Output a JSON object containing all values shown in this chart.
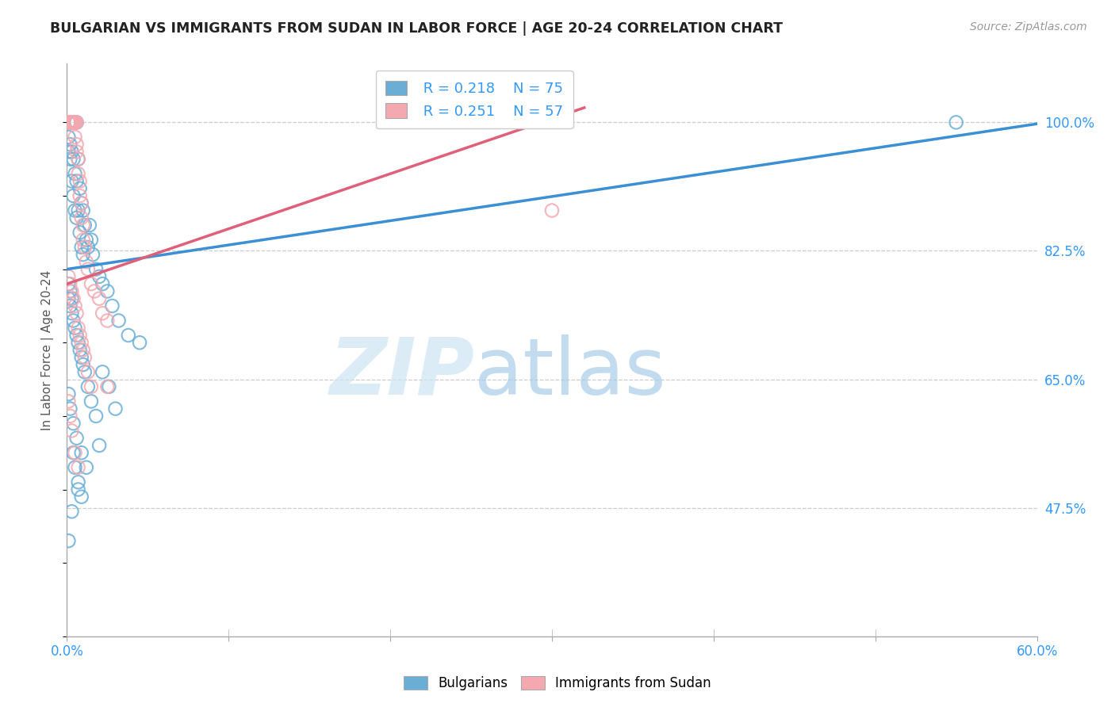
{
  "title": "BULGARIAN VS IMMIGRANTS FROM SUDAN IN LABOR FORCE | AGE 20-24 CORRELATION CHART",
  "source": "Source: ZipAtlas.com",
  "ylabel": "In Labor Force | Age 20-24",
  "x_min": 0.0,
  "x_max": 0.6,
  "y_min": 0.3,
  "y_max": 1.08,
  "x_ticks": [
    0.0,
    0.1,
    0.2,
    0.3,
    0.4,
    0.5,
    0.6
  ],
  "x_tick_labels": [
    "0.0%",
    "",
    "",
    "",
    "",
    "",
    "60.0%"
  ],
  "y_tick_labels_right": [
    "100.0%",
    "82.5%",
    "65.0%",
    "47.5%"
  ],
  "y_ticks_right": [
    1.0,
    0.825,
    0.65,
    0.475
  ],
  "legend_r1": "R = 0.218",
  "legend_n1": "N = 75",
  "legend_r2": "R = 0.251",
  "legend_n2": "N = 57",
  "blue_color": "#6aaed6",
  "pink_color": "#f4a8b0",
  "trendline_blue": "#3b8fd4",
  "trendline_pink": "#e0607a",
  "blue_x": [
    0.001,
    0.001,
    0.001,
    0.002,
    0.002,
    0.002,
    0.003,
    0.003,
    0.003,
    0.004,
    0.004,
    0.004,
    0.005,
    0.005,
    0.005,
    0.006,
    0.006,
    0.006,
    0.007,
    0.007,
    0.008,
    0.008,
    0.009,
    0.009,
    0.01,
    0.01,
    0.011,
    0.012,
    0.013,
    0.014,
    0.015,
    0.016,
    0.018,
    0.02,
    0.022,
    0.025,
    0.028,
    0.032,
    0.038,
    0.045,
    0.001,
    0.002,
    0.003,
    0.004,
    0.005,
    0.006,
    0.007,
    0.008,
    0.009,
    0.01,
    0.011,
    0.013,
    0.015,
    0.018,
    0.022,
    0.026,
    0.03,
    0.001,
    0.002,
    0.003,
    0.004,
    0.005,
    0.007,
    0.009,
    0.001,
    0.002,
    0.004,
    0.006,
    0.009,
    0.012,
    0.001,
    0.003,
    0.007,
    0.55,
    0.02
  ],
  "blue_y": [
    1.0,
    0.98,
    0.96,
    1.0,
    0.97,
    0.95,
    1.0,
    0.96,
    0.92,
    1.0,
    0.95,
    0.9,
    1.0,
    0.93,
    0.88,
    1.0,
    0.92,
    0.87,
    0.95,
    0.88,
    0.91,
    0.85,
    0.89,
    0.83,
    0.88,
    0.82,
    0.86,
    0.84,
    0.83,
    0.86,
    0.84,
    0.82,
    0.8,
    0.79,
    0.78,
    0.77,
    0.75,
    0.73,
    0.71,
    0.7,
    0.76,
    0.75,
    0.74,
    0.73,
    0.72,
    0.71,
    0.7,
    0.69,
    0.68,
    0.67,
    0.66,
    0.64,
    0.62,
    0.6,
    0.66,
    0.64,
    0.61,
    0.78,
    0.77,
    0.76,
    0.55,
    0.53,
    0.51,
    0.49,
    0.63,
    0.61,
    0.59,
    0.57,
    0.55,
    0.53,
    0.43,
    0.47,
    0.5,
    1.0,
    0.56
  ],
  "pink_x": [
    0.001,
    0.001,
    0.001,
    0.001,
    0.002,
    0.002,
    0.002,
    0.002,
    0.003,
    0.003,
    0.003,
    0.003,
    0.004,
    0.004,
    0.004,
    0.005,
    0.005,
    0.005,
    0.006,
    0.006,
    0.006,
    0.007,
    0.007,
    0.008,
    0.008,
    0.009,
    0.009,
    0.01,
    0.01,
    0.011,
    0.012,
    0.013,
    0.015,
    0.017,
    0.02,
    0.022,
    0.025,
    0.001,
    0.002,
    0.003,
    0.004,
    0.005,
    0.006,
    0.007,
    0.008,
    0.009,
    0.01,
    0.011,
    0.013,
    0.015,
    0.001,
    0.002,
    0.003,
    0.005,
    0.007,
    0.025,
    0.3
  ],
  "pink_y": [
    1.0,
    1.0,
    1.0,
    1.0,
    1.0,
    1.0,
    1.0,
    1.0,
    1.0,
    1.0,
    1.0,
    1.0,
    1.0,
    1.0,
    1.0,
    1.0,
    1.0,
    0.98,
    1.0,
    0.97,
    0.96,
    0.95,
    0.93,
    0.92,
    0.9,
    0.89,
    0.87,
    0.86,
    0.84,
    0.83,
    0.81,
    0.8,
    0.78,
    0.77,
    0.76,
    0.74,
    0.73,
    0.79,
    0.78,
    0.77,
    0.76,
    0.75,
    0.74,
    0.72,
    0.71,
    0.7,
    0.69,
    0.68,
    0.66,
    0.64,
    0.62,
    0.6,
    0.58,
    0.55,
    0.53,
    0.64,
    0.88
  ],
  "blue_trend_x": [
    0.0,
    0.6
  ],
  "blue_trend_y": [
    0.8,
    0.998
  ],
  "pink_trend_x": [
    0.0,
    0.32
  ],
  "pink_trend_y": [
    0.78,
    1.02
  ]
}
